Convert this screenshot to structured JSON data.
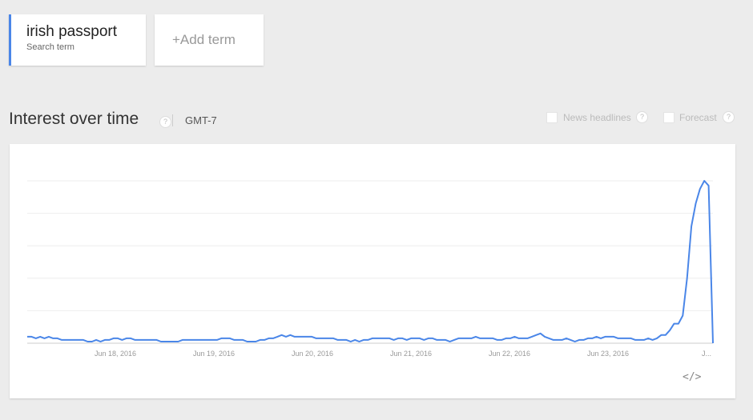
{
  "search_term": {
    "value": "irish passport",
    "caption": "Search term"
  },
  "add_term": {
    "label": "+Add term"
  },
  "section": {
    "title": "Interest over time",
    "help": "?",
    "timezone": "GMT-7"
  },
  "options": {
    "news": "News headlines",
    "forecast": "Forecast",
    "help": "?"
  },
  "embed": {
    "label": "</>"
  },
  "colors": {
    "line": "#4a86e8",
    "accent": "#4a86e8"
  },
  "chart_data": {
    "type": "line",
    "title": "",
    "xlabel": "",
    "ylabel": "",
    "ylim": [
      0,
      100
    ],
    "grid": true,
    "x_tick_labels": [
      "Jun 18, 2016",
      "Jun 19, 2016",
      "Jun 20, 2016",
      "Jun 21, 2016",
      "Jun 22, 2016",
      "Jun 23, 2016",
      "J..."
    ],
    "series": [
      {
        "values": [
          4,
          4,
          3,
          4,
          3,
          4,
          3,
          3,
          2,
          2,
          2,
          2,
          2,
          2,
          1,
          1,
          2,
          1,
          2,
          2,
          3,
          3,
          2,
          3,
          3,
          2,
          2,
          2,
          2,
          2,
          2,
          1,
          1,
          1,
          1,
          1,
          2,
          2,
          2,
          2,
          2,
          2,
          2,
          2,
          2,
          3,
          3,
          3,
          2,
          2,
          2,
          1,
          1,
          1,
          2,
          2,
          3,
          3,
          4,
          5,
          4,
          5,
          4,
          4,
          4,
          4,
          4,
          3,
          3,
          3,
          3,
          3,
          2,
          2,
          2,
          1,
          2,
          1,
          2,
          2,
          3,
          3,
          3,
          3,
          3,
          2,
          3,
          3,
          2,
          3,
          3,
          3,
          2,
          3,
          3,
          2,
          2,
          2,
          1,
          2,
          3,
          3,
          3,
          3,
          4,
          3,
          3,
          3,
          3,
          2,
          2,
          3,
          3,
          4,
          3,
          3,
          3,
          4,
          5,
          6,
          4,
          3,
          2,
          2,
          2,
          3,
          2,
          1,
          2,
          2,
          3,
          3,
          4,
          3,
          4,
          4,
          4,
          3,
          3,
          3,
          3,
          2,
          2,
          2,
          3,
          2,
          3,
          5,
          5,
          8,
          12,
          12,
          17,
          40,
          72,
          86,
          95,
          100,
          97,
          0
        ]
      }
    ]
  }
}
